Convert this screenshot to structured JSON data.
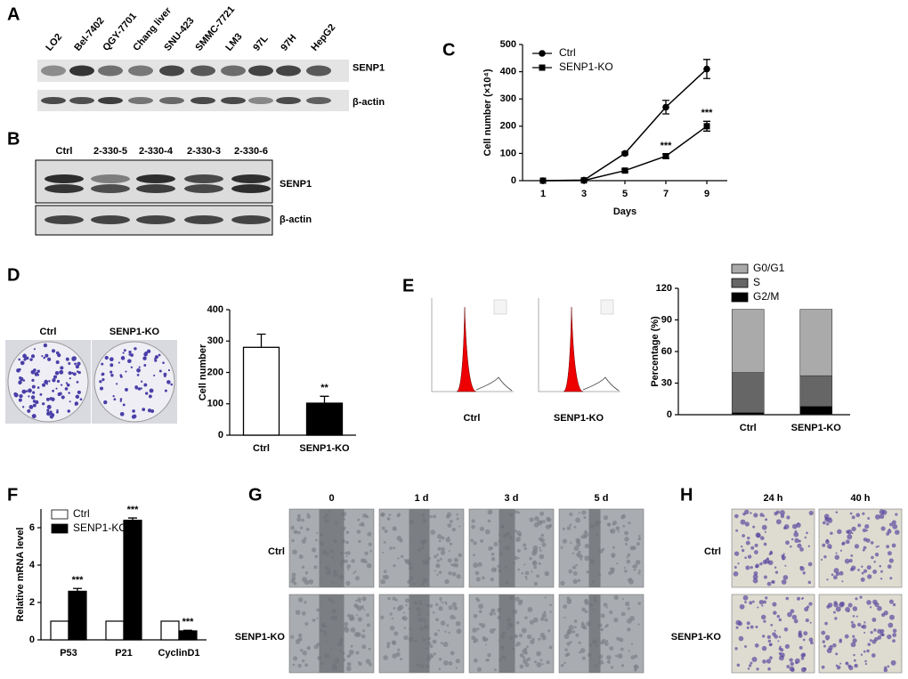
{
  "panels": {
    "A": {
      "label": "A",
      "lanes": [
        "LO2",
        "Bel-7402",
        "QGY-7701",
        "Chang liver",
        "SNU-423",
        "SMMC-7721",
        "LM3",
        "97L",
        "97H",
        "HepG2"
      ],
      "bands": [
        "SENP1",
        "β-actin"
      ]
    },
    "B": {
      "label": "B",
      "lanes": [
        "Ctrl",
        "2-330-5",
        "2-330-4",
        "2-330-3",
        "2-330-6"
      ],
      "bands": [
        "SENP1",
        "β-actin"
      ]
    },
    "D": {
      "label": "D",
      "images": [
        "Ctrl",
        "SENP1-KO"
      ]
    },
    "E": {
      "label": "E",
      "images": [
        "Ctrl",
        "SENP1-KO"
      ]
    },
    "G": {
      "label": "G",
      "columns": [
        "0",
        "1 d",
        "3 d",
        "5 d"
      ],
      "rows": [
        "Ctrl",
        "SENP1-KO"
      ]
    },
    "H": {
      "label": "H",
      "columns": [
        "24 h",
        "40 h"
      ],
      "rows": [
        "Ctrl",
        "SENP1-KO"
      ]
    }
  },
  "chart_data": [
    {
      "type": "line",
      "panel_label": "C",
      "x_label": "Days",
      "y_label": "Cell number (×10⁴)",
      "x": [
        1,
        3,
        5,
        7,
        9
      ],
      "xlim": [
        0,
        10
      ],
      "xticks": [
        1,
        3,
        5,
        7,
        9
      ],
      "ylim": [
        0,
        500
      ],
      "yticks": [
        0,
        100,
        200,
        300,
        400,
        500
      ],
      "series": [
        {
          "name": "Ctrl",
          "color": "#000000",
          "marker": "circle",
          "values": [
            0,
            2,
            100,
            270,
            410
          ],
          "errors": [
            0,
            2,
            5,
            25,
            35
          ]
        },
        {
          "name": "SENP1-KO",
          "color": "#000000",
          "marker": "square",
          "values": [
            0,
            1,
            37,
            90,
            200
          ],
          "errors": [
            0,
            1,
            5,
            8,
            18
          ],
          "significance": [
            null,
            null,
            null,
            "***",
            "***"
          ]
        }
      ]
    },
    {
      "type": "bar",
      "y_label": "Cell number",
      "categories": [
        "Ctrl",
        "SENP1-KO"
      ],
      "values": [
        280,
        102
      ],
      "errors": [
        42,
        22
      ],
      "colors": [
        "#ffffff",
        "#000000"
      ],
      "significance": [
        null,
        "**"
      ],
      "ylim": [
        0,
        400
      ],
      "yticks": [
        0,
        100,
        200,
        300,
        400
      ]
    },
    {
      "type": "bar",
      "stacked": true,
      "y_label": "Percentage (%)",
      "categories": [
        "Ctrl",
        "SENP1-KO"
      ],
      "series": [
        {
          "name": "G0/G1",
          "color": "#aaaaaa",
          "values": [
            60,
            63
          ]
        },
        {
          "name": "S",
          "color": "#666666",
          "values": [
            38,
            29
          ]
        },
        {
          "name": "G2/M",
          "color": "#000000",
          "values": [
            2,
            8
          ]
        }
      ],
      "ylim": [
        0,
        120
      ],
      "yticks": [
        0,
        30,
        60,
        90,
        120
      ]
    },
    {
      "type": "bar",
      "panel_label": "F",
      "y_label": "Relative mRNA level",
      "categories": [
        "P53",
        "P21",
        "CyclinD1"
      ],
      "series": [
        {
          "name": "Ctrl",
          "color": "#ffffff",
          "values": [
            1,
            1,
            1
          ]
        },
        {
          "name": "SENP1-KO",
          "color": "#000000",
          "values": [
            2.6,
            6.4,
            0.48
          ],
          "errors": [
            0.15,
            0.12,
            0.03
          ],
          "significance": [
            "***",
            "***",
            "***"
          ]
        }
      ],
      "ylim": [
        0,
        7
      ],
      "yticks": [
        0,
        2,
        4,
        6
      ]
    }
  ]
}
